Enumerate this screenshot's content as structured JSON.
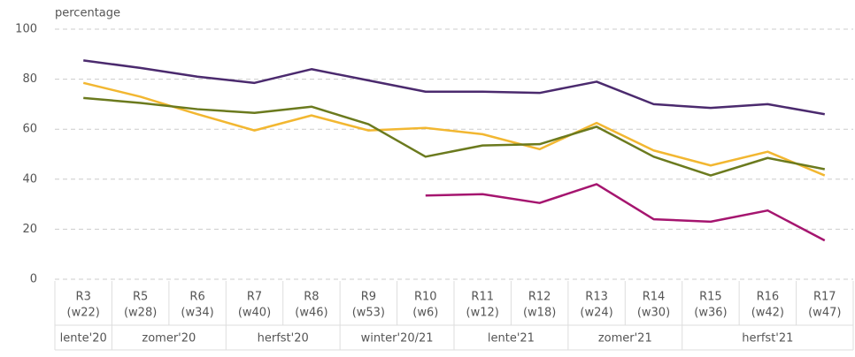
{
  "chart_data": {
    "type": "line",
    "y_label": "percentage",
    "categories": [
      "R3",
      "R5",
      "R6",
      "R7",
      "R8",
      "R9",
      "R10",
      "R11",
      "R12",
      "R13",
      "R14",
      "R15",
      "R16",
      "R17"
    ],
    "weeks": [
      "(w22)",
      "(w28)",
      "(w34)",
      "(w40)",
      "(w46)",
      "(w53)",
      "(w6)",
      "(w12)",
      "(w18)",
      "(w24)",
      "(w30)",
      "(w36)",
      "(w42)",
      "(w47)"
    ],
    "groups": [
      {
        "label": "lente'20",
        "span": 1
      },
      {
        "label": "zomer'20",
        "span": 2
      },
      {
        "label": "herfst'20",
        "span": 2
      },
      {
        "label": "winter'20/21",
        "span": 2
      },
      {
        "label": "lente'21",
        "span": 2
      },
      {
        "label": "zomer'21",
        "span": 2
      },
      {
        "label": "herfst'21",
        "span": 3
      }
    ],
    "series": [
      {
        "color": "#4b2a6e",
        "values": [
          87.5,
          84.5,
          81,
          78.5,
          84,
          79.5,
          75,
          75,
          74.5,
          79,
          70,
          68.5,
          70,
          66
        ]
      },
      {
        "color": "#f2b731",
        "values": [
          78.5,
          73,
          66,
          59.5,
          65.5,
          59.5,
          60.5,
          58,
          52,
          62.5,
          51.5,
          45.5,
          51,
          41.5
        ]
      },
      {
        "color": "#6b7a1e",
        "values": [
          72.5,
          70.5,
          68,
          66.5,
          69,
          62,
          49,
          53.5,
          54,
          61,
          49,
          41.5,
          48.5,
          44
        ]
      },
      {
        "color": "#a5156f",
        "values": [
          null,
          null,
          null,
          null,
          null,
          null,
          33.5,
          34,
          30.5,
          38,
          24,
          23,
          27.5,
          15.5
        ]
      }
    ],
    "ylim": [
      0,
      100
    ],
    "yticks": [
      0,
      20,
      40,
      60,
      80,
      100
    ],
    "grid": true
  }
}
